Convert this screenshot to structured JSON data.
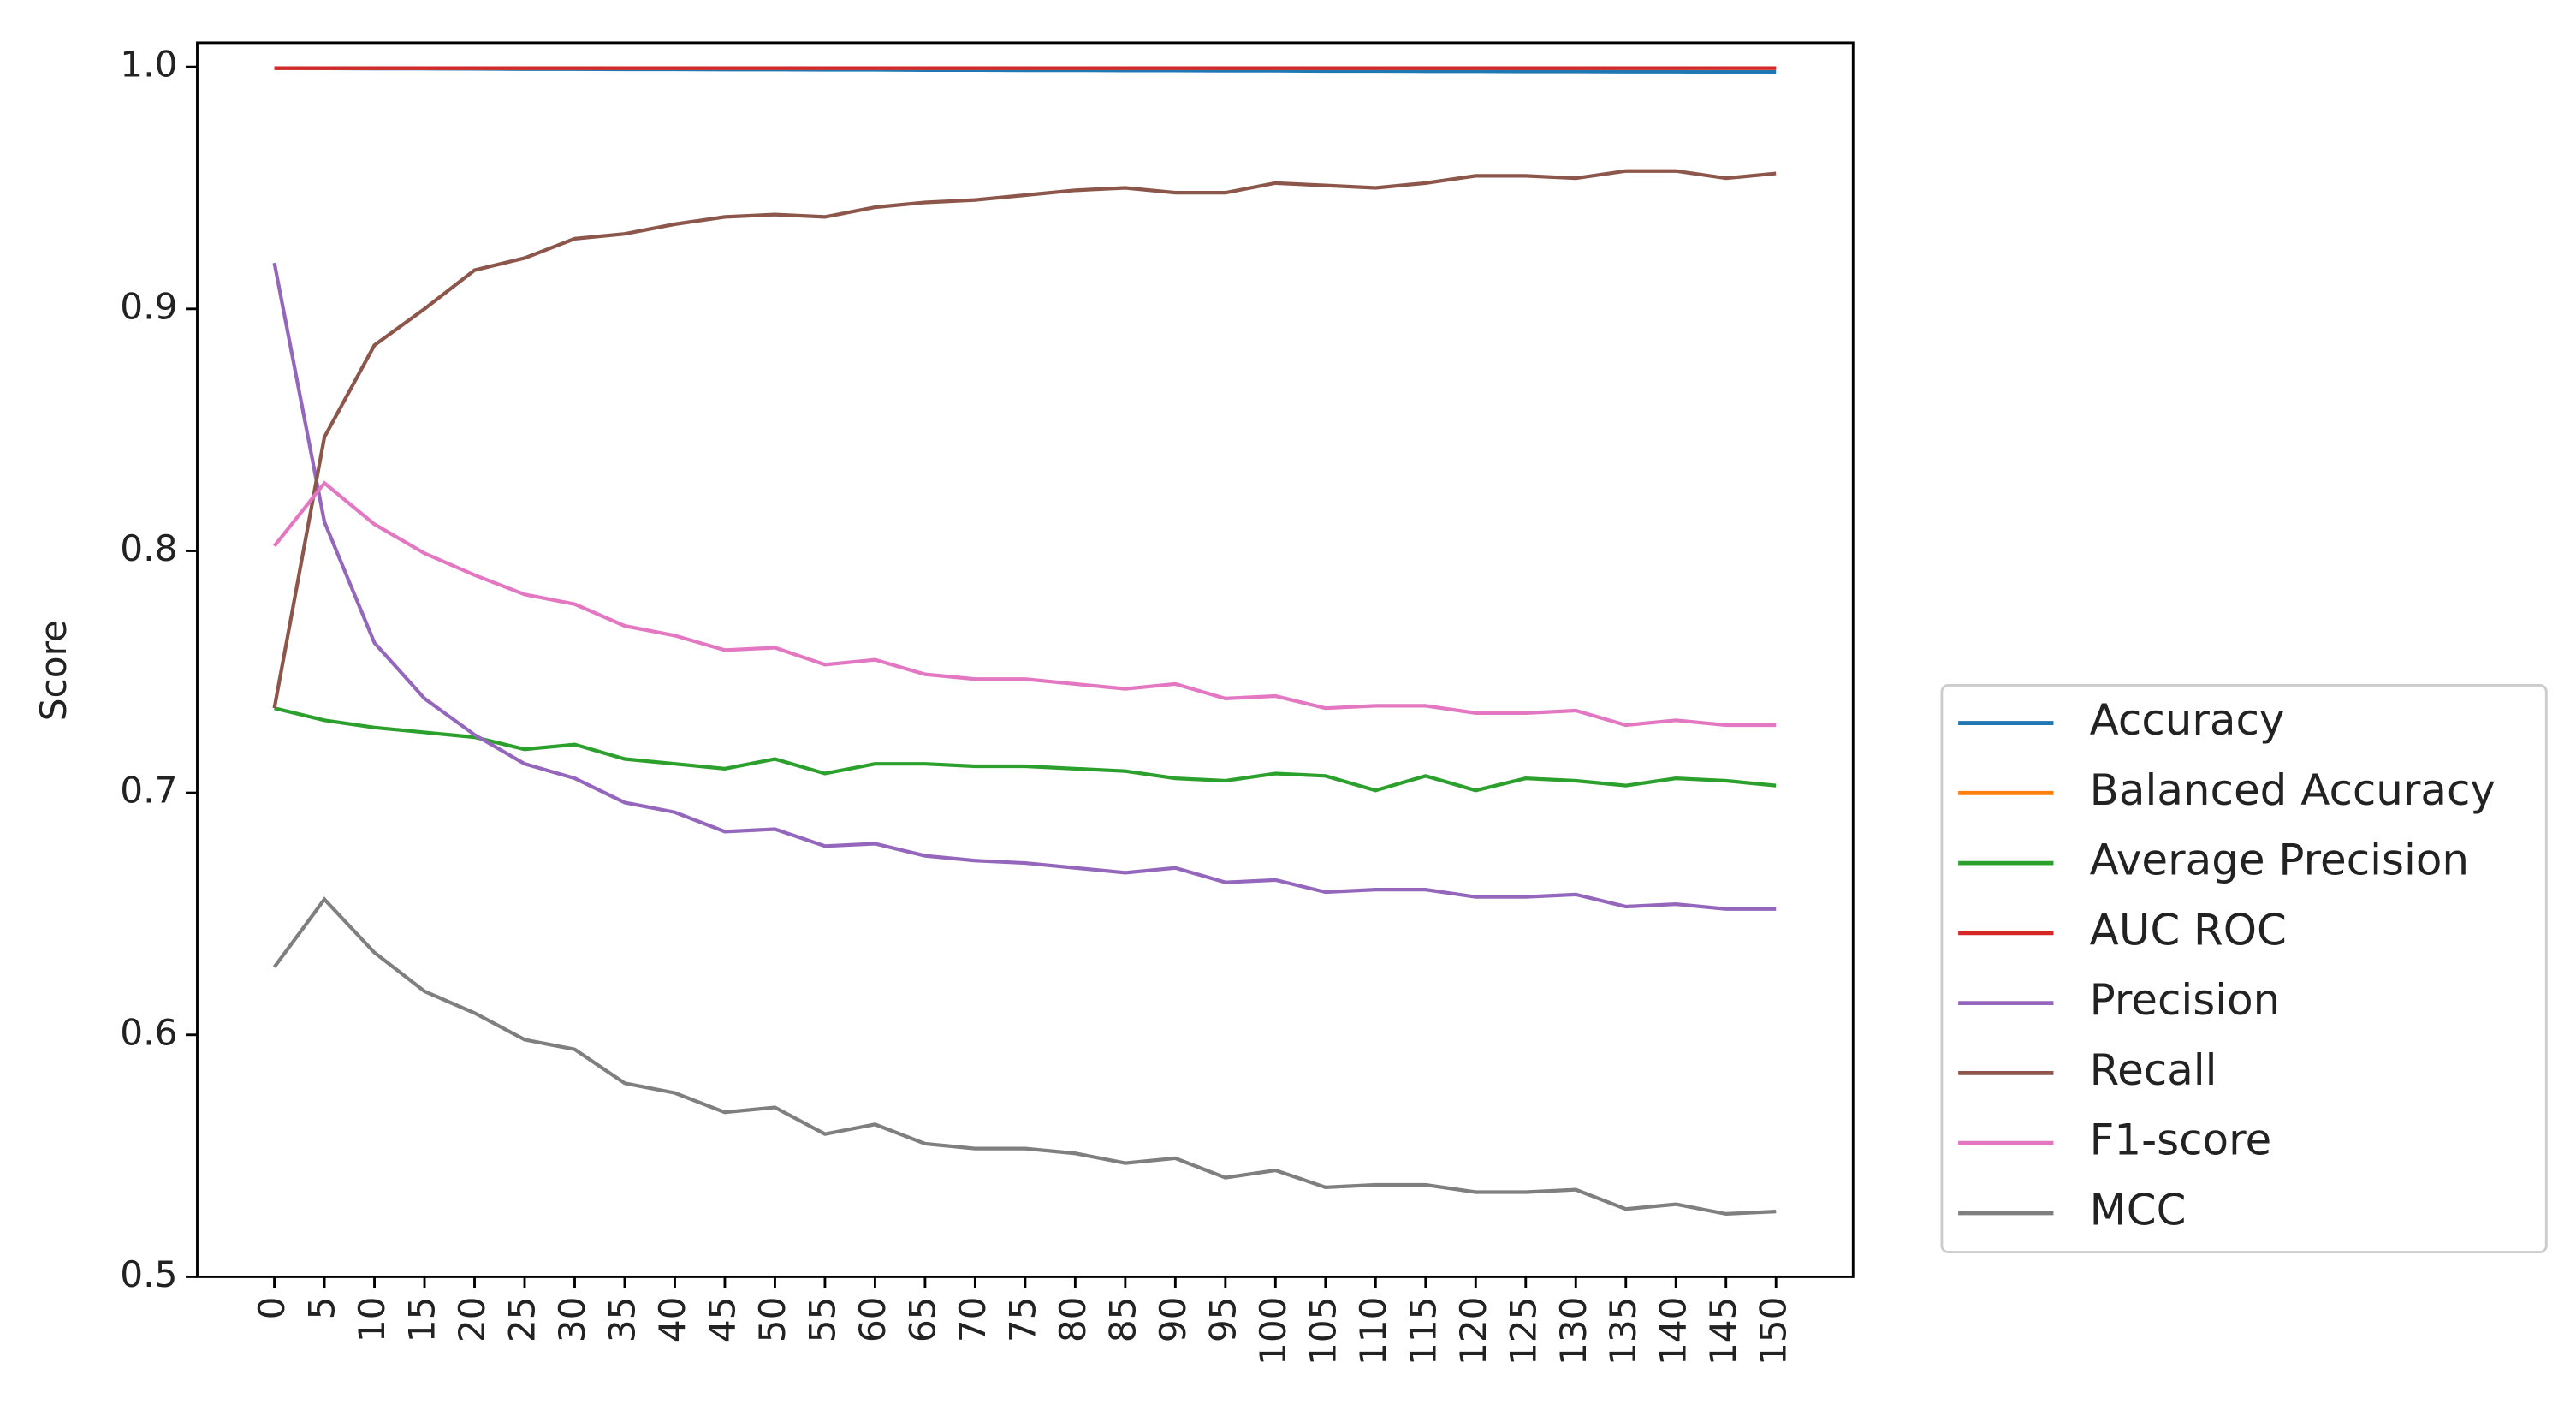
{
  "chart_data": {
    "type": "line",
    "ylabel": "Score",
    "x": [
      0,
      5,
      10,
      15,
      20,
      25,
      30,
      35,
      40,
      45,
      50,
      55,
      60,
      65,
      70,
      75,
      80,
      85,
      90,
      95,
      100,
      105,
      110,
      115,
      120,
      125,
      130,
      135,
      140,
      145,
      150
    ],
    "xlim": [
      -7.7,
      157.7
    ],
    "xticks": [
      0,
      5,
      10,
      15,
      20,
      25,
      30,
      35,
      40,
      45,
      50,
      55,
      60,
      65,
      70,
      75,
      80,
      85,
      90,
      95,
      100,
      105,
      110,
      115,
      120,
      125,
      130,
      135,
      140,
      145,
      150
    ],
    "ylim": [
      0.5,
      1.01
    ],
    "yticks": [
      0.5,
      0.6,
      0.7,
      0.8,
      0.9,
      {
        "value": 1,
        "label": "1.0"
      }
    ],
    "legend": "outside right",
    "series": [
      {
        "name": "Accuracy",
        "color": "#1f77b4",
        "values": [
          0.9995,
          0.9994,
          0.9993,
          0.9993,
          0.9992,
          0.9991,
          0.9991,
          0.999,
          0.999,
          0.9989,
          0.9989,
          0.9988,
          0.9988,
          0.9987,
          0.9987,
          0.9986,
          0.9986,
          0.9985,
          0.9985,
          0.9984,
          0.9984,
          0.9983,
          0.9983,
          0.9982,
          0.9982,
          0.9981,
          0.9981,
          0.998,
          0.998,
          0.9979,
          0.9979
        ]
      },
      {
        "name": "Balanced Accuracy",
        "color": "#ff7f0e",
        "values": [
          0.9995,
          0.9995,
          0.9995,
          0.9995,
          0.9995,
          0.9995,
          0.9995,
          0.9995,
          0.9995,
          0.9995,
          0.9995,
          0.9995,
          0.9995,
          0.9995,
          0.9995,
          0.9995,
          0.9995,
          0.9995,
          0.9995,
          0.9995,
          0.9995,
          0.9995,
          0.9995,
          0.9995,
          0.9995,
          0.9995,
          0.9995,
          0.9995,
          0.9995,
          0.9995,
          0.9995
        ]
      },
      {
        "name": "Average Precision",
        "color": "#2ca02c",
        "values": [
          0.735,
          0.73,
          0.727,
          0.725,
          0.723,
          0.718,
          0.72,
          0.714,
          0.712,
          0.71,
          0.714,
          0.708,
          0.712,
          0.712,
          0.711,
          0.711,
          0.71,
          0.709,
          0.706,
          0.705,
          0.708,
          0.707,
          0.701,
          0.707,
          0.701,
          0.706,
          0.705,
          0.703,
          0.706,
          0.705,
          0.703
        ]
      },
      {
        "name": "AUC ROC",
        "color": "#d62728",
        "values": [
          0.9995,
          0.9995,
          0.9995,
          0.9995,
          0.9995,
          0.9995,
          0.9995,
          0.9995,
          0.9995,
          0.9995,
          0.9995,
          0.9995,
          0.9995,
          0.9995,
          0.9995,
          0.9995,
          0.9995,
          0.9995,
          0.9995,
          0.9995,
          0.9995,
          0.9995,
          0.9995,
          0.9995,
          0.9995,
          0.9995,
          0.9995,
          0.9995,
          0.9995,
          0.9995,
          0.9995
        ]
      },
      {
        "name": "Precision",
        "color": "#9467bd",
        "values": [
          0.919,
          0.812,
          0.762,
          0.739,
          0.724,
          0.712,
          0.706,
          0.696,
          0.692,
          0.684,
          0.685,
          0.678,
          0.679,
          0.674,
          0.672,
          0.671,
          0.669,
          0.667,
          0.669,
          0.663,
          0.664,
          0.659,
          0.66,
          0.66,
          0.657,
          0.657,
          0.658,
          0.653,
          0.654,
          0.652,
          0.652
        ]
      },
      {
        "name": "Recall",
        "color": "#8c564b",
        "values": [
          0.735,
          0.847,
          0.885,
          0.9,
          0.916,
          0.921,
          0.929,
          0.931,
          0.935,
          0.938,
          0.939,
          0.938,
          0.942,
          0.944,
          0.945,
          0.947,
          0.949,
          0.95,
          0.948,
          0.948,
          0.952,
          0.951,
          0.95,
          0.952,
          0.955,
          0.955,
          0.954,
          0.957,
          0.957,
          0.954,
          0.956
        ]
      },
      {
        "name": "F1-score",
        "color": "#e377c2",
        "values": [
          0.802,
          0.828,
          0.811,
          0.799,
          0.79,
          0.782,
          0.778,
          0.769,
          0.765,
          0.759,
          0.76,
          0.753,
          0.755,
          0.749,
          0.747,
          0.747,
          0.745,
          0.743,
          0.745,
          0.739,
          0.74,
          0.735,
          0.736,
          0.736,
          0.733,
          0.733,
          0.734,
          0.728,
          0.73,
          0.728,
          0.728
        ]
      },
      {
        "name": "MCC",
        "color": "#7f7f7f",
        "values": [
          0.628,
          0.656,
          0.634,
          0.618,
          0.609,
          0.598,
          0.594,
          0.58,
          0.576,
          0.568,
          0.57,
          0.559,
          0.563,
          0.555,
          0.553,
          0.553,
          0.551,
          0.547,
          0.549,
          0.541,
          0.544,
          0.537,
          0.538,
          0.538,
          0.535,
          0.535,
          0.536,
          0.528,
          0.53,
          0.526,
          0.527
        ]
      }
    ]
  }
}
